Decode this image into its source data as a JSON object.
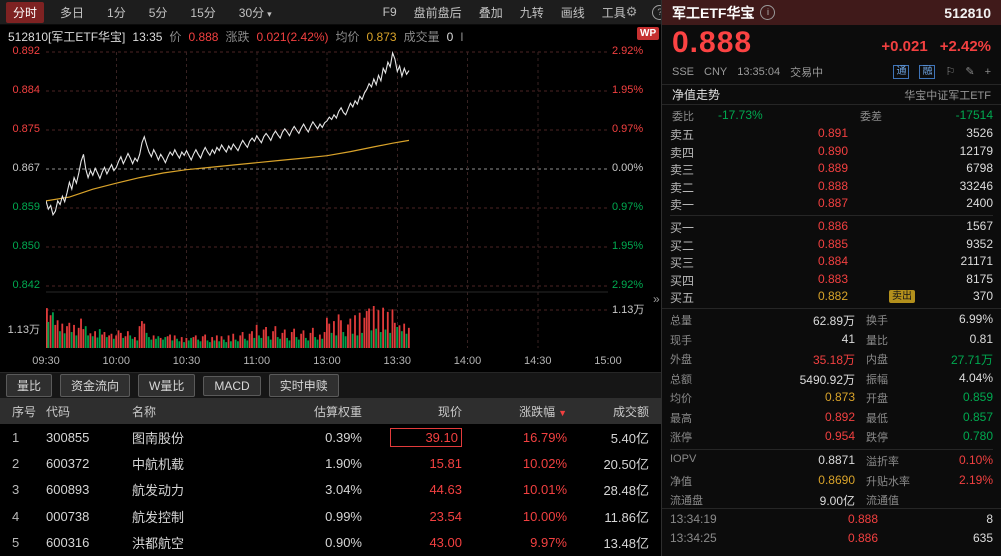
{
  "colors": {
    "up": "#e23b3b",
    "down": "#00a14c",
    "avg": "#d9a32a",
    "price_line": "#e6e6e6",
    "accent": "#f24040"
  },
  "watermark": "WP",
  "toolbar": {
    "periods": [
      {
        "label": "分时",
        "active": true
      },
      {
        "label": "多日"
      },
      {
        "label": "1分"
      },
      {
        "label": "5分"
      },
      {
        "label": "15分"
      },
      {
        "label": "30分",
        "caret": "▾"
      }
    ],
    "tools": [
      "F9",
      "盘前盘后",
      "叠加",
      "九转",
      "画线",
      "工具"
    ],
    "gear": "⚙",
    "help": "?"
  },
  "chart": {
    "info": [
      {
        "t": "512810[军工ETF华宝]",
        "c": "w"
      },
      {
        "t": "13:35",
        "c": "w"
      },
      {
        "t": "价",
        "c": "lbl"
      },
      {
        "t": "0.888",
        "c": "r"
      },
      {
        "t": "涨跌",
        "c": "lbl"
      },
      {
        "t": "0.021(2.42%)",
        "c": "r"
      },
      {
        "t": "均价",
        "c": "lbl"
      },
      {
        "t": "0.873",
        "c": "y"
      },
      {
        "t": "成交量",
        "c": "lbl"
      },
      {
        "t": "0",
        "c": "w"
      },
      {
        "t": "I",
        "c": "lbl"
      }
    ],
    "y_left": [
      "0.892",
      "0.884",
      "0.875",
      "0.867",
      "0.859",
      "0.850",
      "0.842"
    ],
    "y_right": [
      "2.92%",
      "1.95%",
      "0.97%",
      "0.00%",
      "0.97%",
      "1.95%",
      "2.92%"
    ],
    "vol_label": "1.13万",
    "x_labels": [
      "09:30",
      "10:00",
      "10:30",
      "11:00",
      "13:00",
      "13:30",
      "14:00",
      "14:30",
      "15:00"
    ],
    "prev_close": 0.867,
    "y_max": 0.892,
    "y_min": 0.8417,
    "minutes_total": 240,
    "price": [
      0.86,
      0.8582,
      0.859,
      0.857,
      0.8578,
      0.86,
      0.8592,
      0.861,
      0.8598,
      0.8618,
      0.864,
      0.8625,
      0.865,
      0.8638,
      0.866,
      0.8685,
      0.87,
      0.8668,
      0.865,
      0.8665,
      0.8655,
      0.867,
      0.866,
      0.8648,
      0.8662,
      0.8672,
      0.8658,
      0.8668,
      0.8678,
      0.8665,
      0.8672,
      0.8685,
      0.8695,
      0.868,
      0.869,
      0.8702,
      0.8692,
      0.868,
      0.8692,
      0.8685,
      0.87,
      0.8725,
      0.8738,
      0.872,
      0.8705,
      0.8695,
      0.871,
      0.87,
      0.8688,
      0.87,
      0.8692,
      0.8682,
      0.8695,
      0.8705,
      0.8698,
      0.871,
      0.87,
      0.8692,
      0.8705,
      0.8698,
      0.8708,
      0.8698,
      0.8688,
      0.87,
      0.871,
      0.87,
      0.8692,
      0.8705,
      0.8715,
      0.8705,
      0.8698,
      0.871,
      0.8702,
      0.8715,
      0.8708,
      0.872,
      0.8712,
      0.8705,
      0.8718,
      0.871,
      0.8722,
      0.8715,
      0.8708,
      0.872,
      0.873,
      0.8722,
      0.8715,
      0.8728,
      0.8735,
      0.8728,
      0.874,
      0.8732,
      0.8725,
      0.8738,
      0.8745,
      0.8738,
      0.873,
      0.8742,
      0.875,
      0.8742,
      0.8735,
      0.8748,
      0.8755,
      0.8748,
      0.874,
      0.8752,
      0.876,
      0.8752,
      0.8745,
      0.8756,
      0.8765,
      0.8756,
      0.8748,
      0.876,
      0.877,
      0.8762,
      0.8755,
      0.8765,
      0.8758,
      0.8768,
      0.8772,
      0.878,
      0.8775,
      0.8785,
      0.8778,
      0.8792,
      0.88,
      0.879,
      0.8785,
      0.8798,
      0.881,
      0.8802,
      0.8815,
      0.8808,
      0.8825,
      0.8818,
      0.8832,
      0.884,
      0.8852,
      0.8845,
      0.8862,
      0.885,
      0.887,
      0.8858,
      0.8885,
      0.8875,
      0.8898,
      0.8888,
      0.8918,
      0.8905,
      0.8878,
      0.889,
      0.8868,
      0.8885,
      0.8872,
      0.888
    ],
    "avg_series": [
      [
        0,
        0.86
      ],
      [
        10,
        0.8608
      ],
      [
        20,
        0.8625
      ],
      [
        30,
        0.8638
      ],
      [
        40,
        0.865
      ],
      [
        50,
        0.866
      ],
      [
        60,
        0.8667
      ],
      [
        70,
        0.8672
      ],
      [
        80,
        0.8677
      ],
      [
        90,
        0.8682
      ],
      [
        100,
        0.8687
      ],
      [
        110,
        0.8692
      ],
      [
        120,
        0.8697
      ],
      [
        130,
        0.8706
      ],
      [
        140,
        0.8716
      ],
      [
        148,
        0.8724
      ],
      [
        155,
        0.873
      ]
    ],
    "volume": [
      0.95,
      -0.62,
      0.78,
      -0.85,
      0.55,
      0.66,
      -0.4,
      0.58,
      -0.35,
      0.52,
      0.6,
      -0.38,
      0.55,
      -0.3,
      0.48,
      0.7,
      0.45,
      -0.52,
      -0.3,
      0.35,
      -0.28,
      0.4,
      -0.25,
      -0.45,
      0.32,
      0.38,
      -0.26,
      0.3,
      0.34,
      -0.22,
      0.3,
      0.42,
      0.36,
      -0.24,
      0.28,
      0.4,
      -0.3,
      -0.22,
      0.26,
      -0.18,
      0.52,
      0.64,
      0.58,
      -0.36,
      -0.26,
      -0.2,
      0.3,
      -0.22,
      -0.28,
      0.24,
      -0.2,
      -0.26,
      0.28,
      0.32,
      -0.18,
      0.3,
      -0.22,
      -0.16,
      0.26,
      -0.14,
      0.24,
      -0.18,
      -0.24,
      0.26,
      0.3,
      -0.2,
      -0.16,
      0.28,
      0.32,
      -0.18,
      -0.14,
      0.26,
      -0.18,
      0.3,
      -0.16,
      0.28,
      -0.2,
      -0.14,
      0.3,
      -0.16,
      0.34,
      -0.2,
      -0.16,
      0.3,
      0.38,
      -0.22,
      -0.18,
      0.34,
      0.4,
      -0.24,
      0.55,
      -0.3,
      -0.24,
      0.44,
      0.5,
      -0.28,
      -0.2,
      0.4,
      0.52,
      -0.26,
      -0.22,
      0.36,
      0.44,
      -0.24,
      -0.18,
      0.38,
      0.46,
      -0.26,
      -0.2,
      0.34,
      0.42,
      -0.24,
      -0.18,
      0.36,
      0.48,
      -0.26,
      -0.2,
      0.32,
      -0.22,
      0.38,
      0.72,
      0.58,
      -0.36,
      0.64,
      -0.3,
      0.8,
      0.66,
      -0.38,
      -0.28,
      0.56,
      0.7,
      -0.34,
      0.78,
      -0.3,
      0.84,
      -0.36,
      0.72,
      0.88,
      0.94,
      -0.42,
      1.0,
      -0.46,
      0.9,
      -0.38,
      0.96,
      -0.44,
      0.86,
      -0.36,
      0.92,
      0.6,
      -0.5,
      0.54,
      -0.4,
      0.58,
      -0.34,
      0.48
    ]
  },
  "quote": {
    "name": "军工ETF华宝",
    "info_icon": "i",
    "code": "512810",
    "price": "0.888",
    "change": "+0.021",
    "change_pct": "+2.42%",
    "exchange": "SSE",
    "currency": "CNY",
    "time": "13:35:04",
    "status": "交易中",
    "badges": [
      "通",
      "融"
    ],
    "icons": [
      "⚐",
      "✎",
      "+"
    ],
    "nav_link": "净值走势",
    "fund_name": "华宝中证军工ETF",
    "weibi_label": "委比",
    "weibi": "-17.73%",
    "weicha_label": "委差",
    "weicha": "-17514"
  },
  "orderbook": {
    "expand_icon": "»",
    "asks": [
      {
        "label": "卖五",
        "price": "0.891",
        "vol": "3526"
      },
      {
        "label": "卖四",
        "price": "0.890",
        "vol": "12179"
      },
      {
        "label": "卖三",
        "price": "0.889",
        "vol": "6798"
      },
      {
        "label": "卖二",
        "price": "0.888",
        "vol": "33246"
      },
      {
        "label": "卖一",
        "price": "0.887",
        "vol": "2400"
      }
    ],
    "bids": [
      {
        "label": "买一",
        "price": "0.886",
        "vol": "1567"
      },
      {
        "label": "买二",
        "price": "0.885",
        "vol": "9352"
      },
      {
        "label": "买三",
        "price": "0.884",
        "vol": "21171"
      },
      {
        "label": "买四",
        "price": "0.883",
        "vol": "8175"
      },
      {
        "label": "买五",
        "price": "0.882",
        "vol": "370",
        "badge": "卖出"
      }
    ]
  },
  "stats": {
    "rows": [
      [
        {
          "l": "总量",
          "v": "62.89万",
          "c": "w"
        },
        {
          "l": "换手",
          "v": "6.99%",
          "c": "w"
        }
      ],
      [
        {
          "l": "现手",
          "v": "41",
          "c": "w"
        },
        {
          "l": "量比",
          "v": "0.81",
          "c": "w"
        }
      ],
      [
        {
          "l": "外盘",
          "v": "35.18万",
          "c": "r"
        },
        {
          "l": "内盘",
          "v": "27.71万",
          "c": "g"
        }
      ],
      [
        {
          "l": "总额",
          "v": "5490.92万",
          "c": "w"
        },
        {
          "l": "振幅",
          "v": "4.04%",
          "c": "w"
        }
      ],
      [
        {
          "l": "均价",
          "v": "0.873",
          "c": "y"
        },
        {
          "l": "开盘",
          "v": "0.859",
          "c": "g"
        }
      ],
      [
        {
          "l": "最高",
          "v": "0.892",
          "c": "r"
        },
        {
          "l": "最低",
          "v": "0.857",
          "c": "g"
        }
      ],
      [
        {
          "l": "涨停",
          "v": "0.954",
          "c": "r"
        },
        {
          "l": "跌停",
          "v": "0.780",
          "c": "g"
        }
      ],
      [
        {
          "l": "IOPV",
          "v": "0.8871",
          "c": "w"
        },
        {
          "l": "溢折率",
          "v": "0.10%",
          "c": "r"
        }
      ],
      [
        {
          "l": "净值",
          "v": "0.8690",
          "c": "y"
        },
        {
          "l": "升贴水率",
          "v": "2.19%",
          "c": "r"
        }
      ],
      [
        {
          "l": "流通盘",
          "v": "9.00亿",
          "c": "w"
        },
        {
          "l": "流通值",
          "v": "",
          "c": "w"
        }
      ]
    ]
  },
  "ticks": [
    {
      "time": "13:34:19",
      "price": "0.888",
      "pc": "r",
      "qty": "8",
      "qc": "w"
    },
    {
      "time": "13:34:25",
      "price": "0.886",
      "pc": "r",
      "qty": "635",
      "qc": "w"
    }
  ],
  "tabs": [
    "量比",
    "资金流向",
    "W量比",
    "MACD",
    "实时申赎"
  ],
  "table": {
    "columns": [
      {
        "label": "序号"
      },
      {
        "label": "代码"
      },
      {
        "label": "名称"
      },
      {
        "label": "估算权重"
      },
      {
        "label": "现价"
      },
      {
        "label": "涨跌幅",
        "sort": "▼"
      },
      {
        "label": "成交额"
      }
    ],
    "rows": [
      {
        "seq": "1",
        "code": "300855",
        "name": "图南股份",
        "weight": "0.39%",
        "price": "39.10",
        "chg": "16.79%",
        "amount": "5.40亿",
        "highlight": true
      },
      {
        "seq": "2",
        "code": "600372",
        "name": "中航机载",
        "weight": "1.90%",
        "price": "15.81",
        "chg": "10.02%",
        "amount": "20.50亿"
      },
      {
        "seq": "3",
        "code": "600893",
        "name": "航发动力",
        "weight": "3.04%",
        "price": "44.63",
        "chg": "10.01%",
        "amount": "28.48亿"
      },
      {
        "seq": "4",
        "code": "000738",
        "name": "航发控制",
        "weight": "0.99%",
        "price": "23.54",
        "chg": "10.00%",
        "amount": "11.86亿"
      },
      {
        "seq": "5",
        "code": "600316",
        "name": "洪都航空",
        "weight": "0.90%",
        "price": "43.00",
        "chg": "9.97%",
        "amount": "13.48亿"
      }
    ]
  }
}
